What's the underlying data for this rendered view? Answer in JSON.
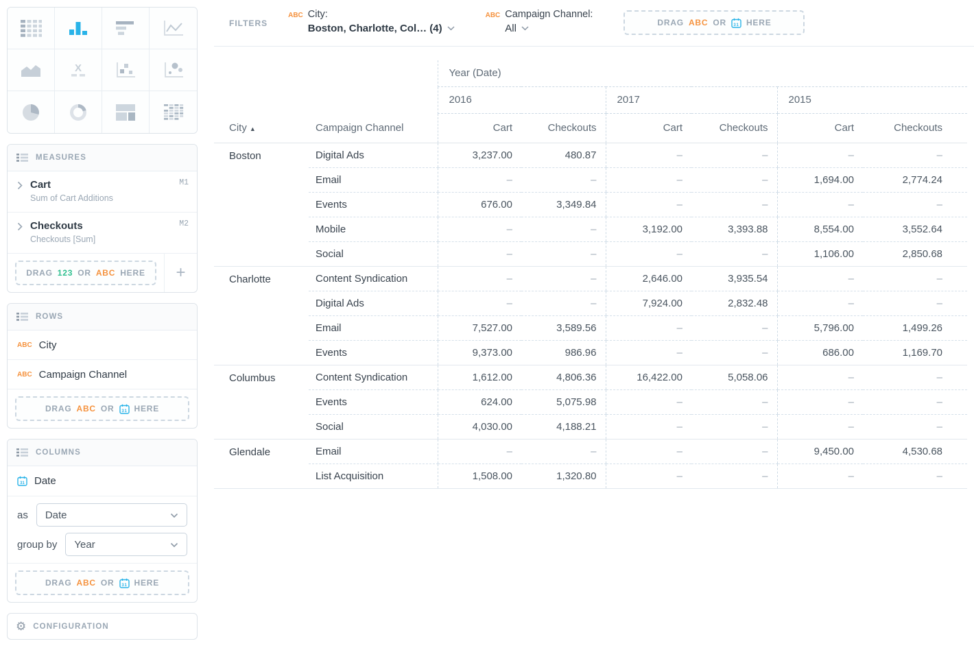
{
  "colors": {
    "accent_blue": "#29b3e8",
    "abc_orange": "#f5923e",
    "num_green": "#2fbf8f",
    "text_dark": "#39434e",
    "text_gray": "#5e6a76",
    "text_light": "#9aa7b4",
    "panel_border": "#dde3e9",
    "dashed_line": "#ccd9e4"
  },
  "chart_picker": {
    "selected": "bar-chart",
    "types": [
      "data-table",
      "bar-chart",
      "horizontal-bar-chart",
      "line-chart",
      "area-chart",
      "box-plot",
      "scatter-plot",
      "bubble-chart",
      "pie-chart",
      "donut-chart",
      "treemap",
      "pivot-table"
    ]
  },
  "measures_panel": {
    "title": "MEASURES",
    "items": [
      {
        "name": "Cart",
        "description": "Sum of Cart Additions",
        "badge": "M1"
      },
      {
        "name": "Checkouts",
        "description": "Checkouts [Sum]",
        "badge": "M2"
      }
    ],
    "drop_zone": {
      "drag": "DRAG",
      "num": "123",
      "or": "OR",
      "abc": "ABC",
      "here": "HERE"
    },
    "add_label": "+"
  },
  "rows_panel": {
    "title": "ROWS",
    "fields": [
      {
        "type_tag": "ABC",
        "label": "City"
      },
      {
        "type_tag": "ABC",
        "label": "Campaign Channel"
      }
    ],
    "drop_zone": {
      "drag": "DRAG",
      "abc": "ABC",
      "or": "OR",
      "here": "HERE"
    }
  },
  "columns_panel": {
    "title": "COLUMNS",
    "fields": [
      {
        "type_tag": "date",
        "label": "Date"
      }
    ],
    "as_label": "as",
    "as_value": "Date",
    "group_by_label": "group by",
    "group_by_value": "Year",
    "drop_zone": {
      "drag": "DRAG",
      "abc": "ABC",
      "or": "OR",
      "here": "HERE"
    }
  },
  "configuration_panel": {
    "title": "CONFIGURATION"
  },
  "filters_bar": {
    "label": "FILTERS",
    "filters": [
      {
        "type_tag": "ABC",
        "name": "City:",
        "value": "Boston, Charlotte, Col… (4)"
      },
      {
        "type_tag": "ABC",
        "name": "Campaign Channel:",
        "value": "All"
      }
    ],
    "drop_zone": {
      "drag": "DRAG",
      "abc": "ABC",
      "or": "OR",
      "here": "HERE"
    }
  },
  "pivot": {
    "column_dimension_title": "Year (Date)",
    "years": [
      "2016",
      "2017",
      "2015"
    ],
    "measure_headers": [
      "Cart",
      "Checkouts"
    ],
    "row_headers": {
      "city": "City",
      "sort_icon": "▲",
      "channel": "Campaign Channel"
    },
    "empty_marker": "–",
    "groups": [
      {
        "city": "Boston",
        "rows": [
          {
            "channel": "Digital Ads",
            "values": [
              "3,237.00",
              "480.87",
              "–",
              "–",
              "–",
              "–"
            ]
          },
          {
            "channel": "Email",
            "values": [
              "–",
              "–",
              "–",
              "–",
              "1,694.00",
              "2,774.24"
            ]
          },
          {
            "channel": "Events",
            "values": [
              "676.00",
              "3,349.84",
              "–",
              "–",
              "–",
              "–"
            ]
          },
          {
            "channel": "Mobile",
            "values": [
              "–",
              "–",
              "3,192.00",
              "3,393.88",
              "8,554.00",
              "3,552.64"
            ]
          },
          {
            "channel": "Social",
            "values": [
              "–",
              "–",
              "–",
              "–",
              "1,106.00",
              "2,850.68"
            ]
          }
        ]
      },
      {
        "city": "Charlotte",
        "rows": [
          {
            "channel": "Content Syndication",
            "values": [
              "–",
              "–",
              "2,646.00",
              "3,935.54",
              "–",
              "–"
            ]
          },
          {
            "channel": "Digital Ads",
            "values": [
              "–",
              "–",
              "7,924.00",
              "2,832.48",
              "–",
              "–"
            ]
          },
          {
            "channel": "Email",
            "values": [
              "7,527.00",
              "3,589.56",
              "–",
              "–",
              "5,796.00",
              "1,499.26"
            ]
          },
          {
            "channel": "Events",
            "values": [
              "9,373.00",
              "986.96",
              "–",
              "–",
              "686.00",
              "1,169.70"
            ]
          }
        ]
      },
      {
        "city": "Columbus",
        "rows": [
          {
            "channel": "Content Syndication",
            "values": [
              "1,612.00",
              "4,806.36",
              "16,422.00",
              "5,058.06",
              "–",
              "–"
            ]
          },
          {
            "channel": "Events",
            "values": [
              "624.00",
              "5,075.98",
              "–",
              "–",
              "–",
              "–"
            ]
          },
          {
            "channel": "Social",
            "values": [
              "4,030.00",
              "4,188.21",
              "–",
              "–",
              "–",
              "–"
            ]
          }
        ]
      },
      {
        "city": "Glendale",
        "rows": [
          {
            "channel": "Email",
            "values": [
              "–",
              "–",
              "–",
              "–",
              "9,450.00",
              "4,530.68"
            ]
          },
          {
            "channel": "List Acquisition",
            "values": [
              "1,508.00",
              "1,320.80",
              "–",
              "–",
              "–",
              "–"
            ]
          }
        ]
      }
    ]
  }
}
